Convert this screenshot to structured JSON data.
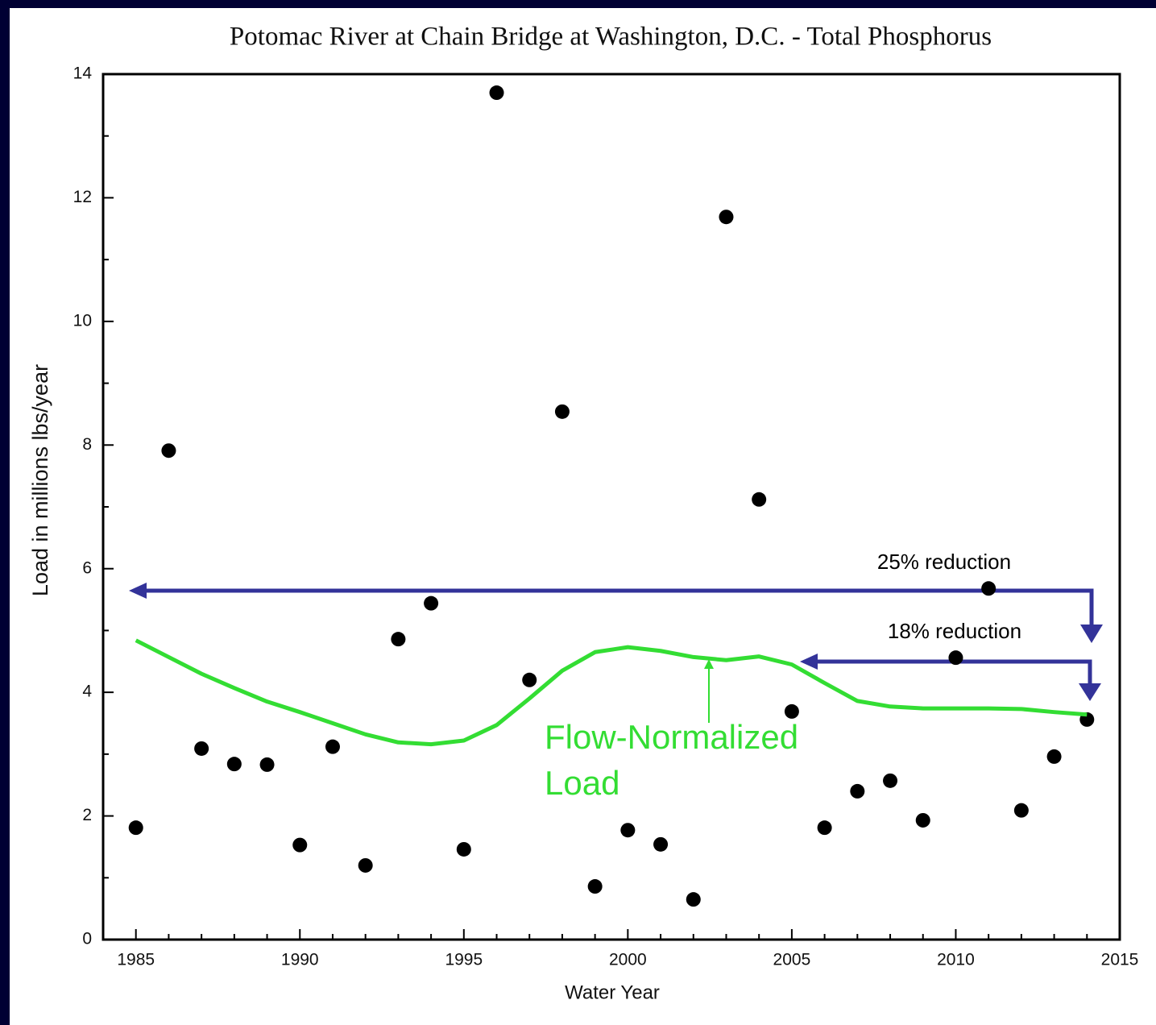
{
  "chart_data": {
    "type": "scatter",
    "title": "Potomac River at Chain Bridge at Washington, D.C. - Total Phosphorus",
    "x_label": "Water Year",
    "y_label": "Load in millions lbs/year",
    "x": [
      1985,
      1986,
      1987,
      1988,
      1989,
      1990,
      1991,
      1992,
      1993,
      1994,
      1995,
      1996,
      1997,
      1998,
      1999,
      2000,
      2001,
      2002,
      2003,
      2004,
      2005,
      2006,
      2007,
      2008,
      2009,
      2010,
      2011,
      2012,
      2013,
      2014
    ],
    "series": [
      {
        "mark": "dot",
        "color": "#000000",
        "values": [
          1.81,
          7.91,
          3.09,
          2.84,
          2.83,
          1.53,
          3.12,
          1.2,
          4.86,
          5.44,
          1.46,
          13.7,
          4.2,
          8.54,
          0.86,
          1.77,
          1.54,
          0.65,
          11.69,
          7.12,
          3.69,
          1.81,
          2.4,
          2.57,
          1.93,
          4.56,
          5.68,
          2.09,
          2.96,
          3.56
        ]
      },
      {
        "mark": "line",
        "color": "#33dd33",
        "values": [
          4.84,
          4.57,
          4.3,
          4.07,
          3.85,
          3.68,
          3.5,
          3.32,
          3.19,
          3.16,
          3.22,
          3.47,
          3.9,
          4.35,
          4.65,
          4.73,
          4.67,
          4.57,
          4.52,
          4.58,
          4.45,
          4.15,
          3.86,
          3.77,
          3.74,
          3.74,
          3.74,
          3.73,
          3.68,
          3.64
        ]
      }
    ],
    "xlim": [
      1984,
      2015
    ],
    "ylim": [
      0,
      14
    ],
    "xticks": [
      1985,
      1990,
      1995,
      2000,
      2005,
      2010,
      2015
    ],
    "yticks": [
      0,
      2,
      4,
      6,
      8,
      10,
      12,
      14
    ],
    "x_minor_ticks": [
      1986,
      1987,
      1988,
      1989,
      1991,
      1992,
      1993,
      1994,
      1996,
      1997,
      1998,
      1999,
      2001,
      2002,
      2003,
      2004,
      2006,
      2007,
      2008,
      2009,
      2011,
      2012,
      2013,
      2014
    ],
    "y_minor_ticks": [
      1,
      3,
      5,
      7,
      9,
      11,
      13
    ],
    "annotations": [
      "25% reduction",
      "18% reduction"
    ],
    "line_label": [
      "Flow-Normalized",
      "Load"
    ]
  }
}
